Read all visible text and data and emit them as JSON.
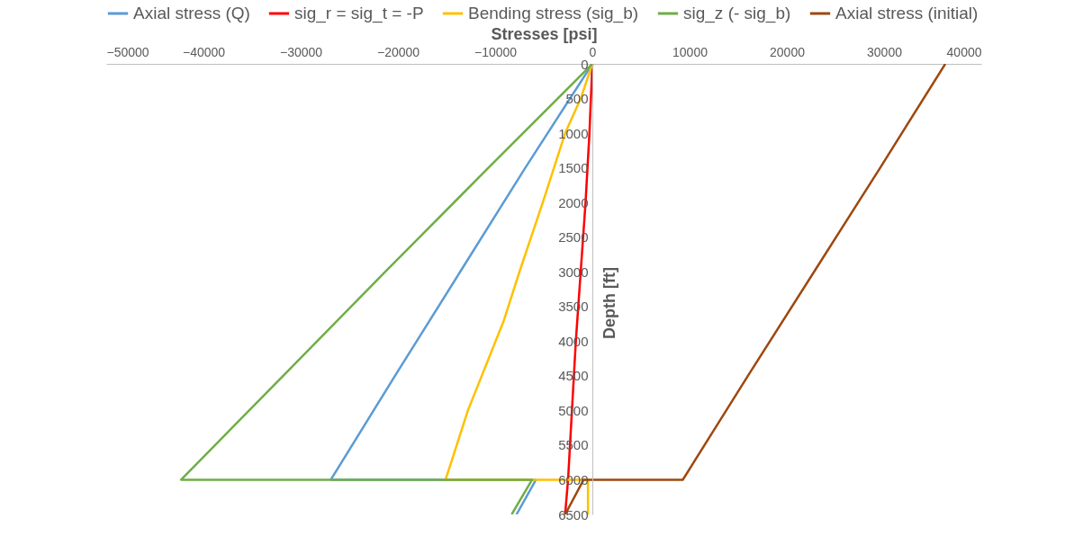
{
  "chart_data": {
    "type": "line",
    "xlabel": "Stresses [psi]",
    "ylabel": "Depth [ft]",
    "xlim": [
      -50000,
      40000
    ],
    "xticks": [
      -50000,
      -40000,
      -30000,
      -20000,
      -10000,
      0,
      10000,
      20000,
      30000,
      40000
    ],
    "ylim": [
      6500,
      0
    ],
    "yticks": [
      0,
      500,
      1000,
      1500,
      2000,
      2500,
      3000,
      3500,
      4000,
      4500,
      5000,
      5500,
      6000,
      6500
    ],
    "grid": false,
    "legend": "top",
    "marker": "none",
    "line_style": "solid",
    "series": [
      {
        "name": "Axial stress (Q)",
        "color": "#5b9bd5",
        "x": [
          0,
          -6900,
          -13600,
          -20300,
          -26900,
          -5800,
          -7800
        ],
        "values": [
          0,
          1500,
          3000,
          4500,
          6000,
          6000,
          6500
        ]
      },
      {
        "name": "sig_r = sig_t = -P",
        "color": "#ff0000",
        "x": [
          0,
          -300,
          -700,
          -1200,
          -1700,
          -2100,
          -2500,
          -2800
        ],
        "values": [
          0,
          1000,
          2000,
          3000,
          4000,
          5000,
          6000,
          6500
        ]
      },
      {
        "name": "Bending stress (sig_b)",
        "color": "#ffc000",
        "x": [
          0,
          -1200,
          -2800,
          -5100,
          -7500,
          -9100,
          -12800,
          -15100,
          -450,
          -450
        ],
        "values": [
          0,
          500,
          1000,
          2000,
          3000,
          3700,
          5000,
          6000,
          6000,
          6500
        ]
      },
      {
        "name": "sig_z (- sig_b)",
        "color": "#70ad47",
        "x": [
          0,
          -10700,
          -21300,
          -31800,
          -42300,
          -6200,
          -8300
        ],
        "values": [
          0,
          1500,
          3000,
          4500,
          6000,
          6000,
          6500
        ]
      },
      {
        "name": "Axial stress (initial)",
        "color": "#9e480e",
        "x": [
          36300,
          29600,
          22800,
          16000,
          9300,
          -900,
          -2800
        ],
        "values": [
          0,
          1500,
          3000,
          4500,
          6000,
          6000,
          6500
        ]
      }
    ]
  }
}
